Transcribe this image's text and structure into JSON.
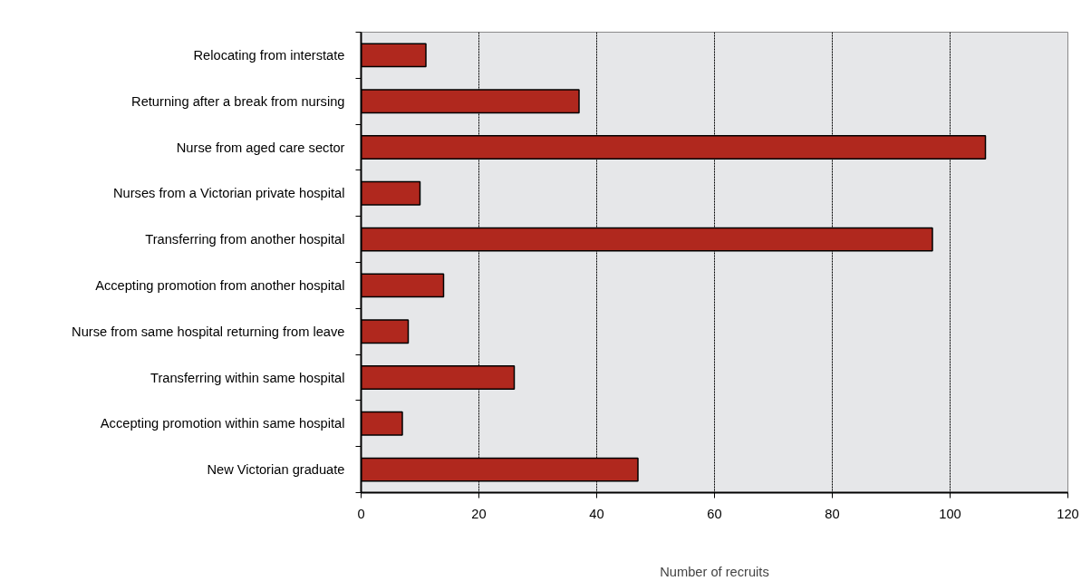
{
  "chart_data": {
    "type": "bar",
    "orientation": "horizontal",
    "xlabel": "Number of recruits",
    "categories": [
      "Relocating from interstate",
      "Returning after a break from nursing",
      "Nurse from aged care sector",
      "Nurses from a Victorian private hospital",
      "Transferring from another hospital",
      "Accepting promotion from another hospital",
      "Nurse from same hospital returning from leave",
      "Transferring within same hospital",
      "Accepting promotion within same hospital",
      "New Victorian graduate"
    ],
    "values": [
      11,
      37,
      106,
      10,
      97,
      14,
      8,
      26,
      7,
      47
    ],
    "color": "#b0281e",
    "xlim": [
      0,
      120
    ],
    "xticks": [
      0,
      20,
      40,
      60,
      80,
      100,
      120
    ],
    "grid": "x"
  }
}
